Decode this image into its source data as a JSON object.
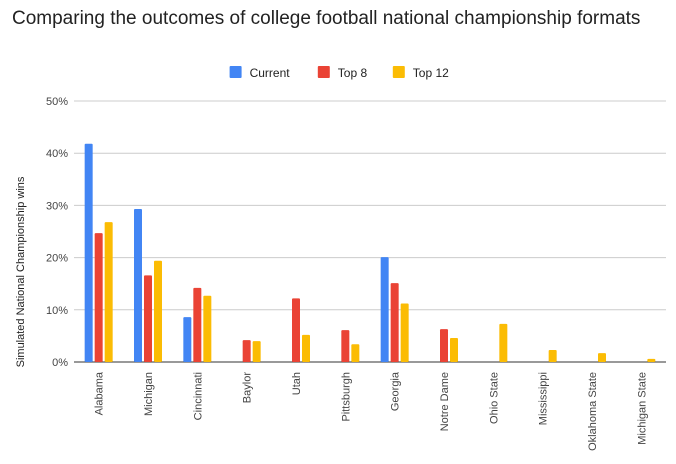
{
  "chart_data": {
    "type": "bar",
    "title": "Comparing the outcomes of college football national championship formats",
    "xlabel": "",
    "ylabel": "Simulated National Championship wins",
    "ylim": [
      0,
      50
    ],
    "yticks": [
      "0%",
      "10%",
      "20%",
      "30%",
      "40%",
      "50%"
    ],
    "grid": true,
    "legend_position": "top",
    "categories": [
      "Alabama",
      "Michigan",
      "Cincinnati",
      "Baylor",
      "Utah",
      "Pittsburgh",
      "Georgia",
      "Notre Dame",
      "Ohio State",
      "Mississippi",
      "Oklahoma State",
      "Michigan State"
    ],
    "series": [
      {
        "name": "Current",
        "color": "#4285f4",
        "values": [
          41.8,
          29.3,
          8.6,
          0,
          0,
          0,
          20.1,
          0,
          0,
          0,
          0,
          0
        ]
      },
      {
        "name": "Top 8",
        "color": "#ea4335",
        "values": [
          24.7,
          16.6,
          14.2,
          4.2,
          12.2,
          6.1,
          15.1,
          6.3,
          0,
          0,
          0,
          0
        ]
      },
      {
        "name": "Top 12",
        "color": "#fbbc04",
        "values": [
          26.8,
          19.4,
          12.7,
          4.0,
          5.2,
          3.4,
          11.2,
          4.6,
          7.3,
          2.3,
          1.7,
          0.6
        ]
      }
    ]
  }
}
